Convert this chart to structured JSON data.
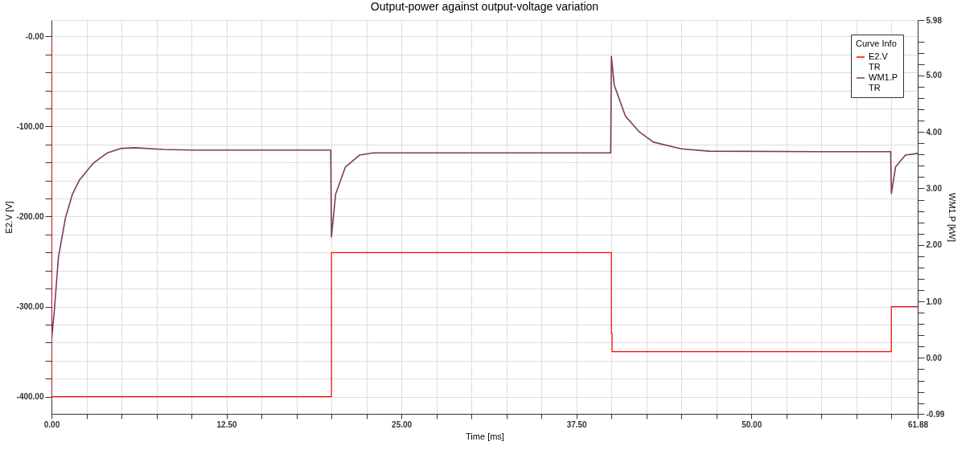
{
  "chart_data": {
    "type": "line",
    "title": "Output-power against output-voltage variation",
    "xlabel": "Time [ms]",
    "ylabel": "E2.V [V]",
    "y2label": "WM1.P [kW]",
    "legend_title": "Curve Info",
    "legend": "top right",
    "grid": true,
    "xlim": [
      0,
      61.88
    ],
    "ylim": [
      -419.1,
      18.2
    ],
    "y2lim": [
      -0.99,
      5.98
    ],
    "xticks": [
      {
        "value": 0,
        "label": "0.00"
      },
      {
        "value": 2.5,
        "label": null
      },
      {
        "value": 5,
        "label": null
      },
      {
        "value": 7.5,
        "label": null
      },
      {
        "value": 10,
        "label": null
      },
      {
        "value": 12.5,
        "label": "12.50"
      },
      {
        "value": 15,
        "label": null
      },
      {
        "value": 17.5,
        "label": null
      },
      {
        "value": 20,
        "label": null
      },
      {
        "value": 22.5,
        "label": null
      },
      {
        "value": 25,
        "label": "25.00"
      },
      {
        "value": 27.5,
        "label": null
      },
      {
        "value": 30,
        "label": null
      },
      {
        "value": 32.5,
        "label": null
      },
      {
        "value": 35,
        "label": null
      },
      {
        "value": 37.5,
        "label": "37.50"
      },
      {
        "value": 40,
        "label": null
      },
      {
        "value": 42.5,
        "label": null
      },
      {
        "value": 45,
        "label": null
      },
      {
        "value": 47.5,
        "label": null
      },
      {
        "value": 50,
        "label": "50.00"
      },
      {
        "value": 52.5,
        "label": null
      },
      {
        "value": 55,
        "label": null
      },
      {
        "value": 57.5,
        "label": null
      },
      {
        "value": 60,
        "label": null
      },
      {
        "value": 61.88,
        "label": "61.88"
      }
    ],
    "yticks": [
      {
        "value": 0,
        "label": "-0.00"
      },
      {
        "value": -20,
        "label": null
      },
      {
        "value": -40,
        "label": null
      },
      {
        "value": -60,
        "label": null
      },
      {
        "value": -80,
        "label": null
      },
      {
        "value": -100,
        "label": "-100.00"
      },
      {
        "value": -120,
        "label": null
      },
      {
        "value": -140,
        "label": null
      },
      {
        "value": -160,
        "label": null
      },
      {
        "value": -180,
        "label": null
      },
      {
        "value": -200,
        "label": "-200.00"
      },
      {
        "value": -220,
        "label": null
      },
      {
        "value": -240,
        "label": null
      },
      {
        "value": -260,
        "label": null
      },
      {
        "value": -280,
        "label": null
      },
      {
        "value": -300,
        "label": "-300.00"
      },
      {
        "value": -320,
        "label": null
      },
      {
        "value": -340,
        "label": null
      },
      {
        "value": -360,
        "label": null
      },
      {
        "value": -380,
        "label": null
      },
      {
        "value": -400,
        "label": "-400.00"
      }
    ],
    "y2ticks": [
      {
        "value": 5.98,
        "label": "5.98"
      },
      {
        "value": 5.6,
        "label": null
      },
      {
        "value": 5.4,
        "label": null
      },
      {
        "value": 5.2,
        "label": null
      },
      {
        "value": 5,
        "label": "5.00"
      },
      {
        "value": 4.8,
        "label": null
      },
      {
        "value": 4.6,
        "label": null
      },
      {
        "value": 4.4,
        "label": null
      },
      {
        "value": 4.2,
        "label": null
      },
      {
        "value": 4,
        "label": "4.00"
      },
      {
        "value": 3.8,
        "label": null
      },
      {
        "value": 3.6,
        "label": null
      },
      {
        "value": 3.4,
        "label": null
      },
      {
        "value": 3.2,
        "label": null
      },
      {
        "value": 3,
        "label": "3.00"
      },
      {
        "value": 2.8,
        "label": null
      },
      {
        "value": 2.6,
        "label": null
      },
      {
        "value": 2.4,
        "label": null
      },
      {
        "value": 2.2,
        "label": null
      },
      {
        "value": 2,
        "label": "2.00"
      },
      {
        "value": 1.8,
        "label": null
      },
      {
        "value": 1.6,
        "label": null
      },
      {
        "value": 1.4,
        "label": null
      },
      {
        "value": 1.2,
        "label": null
      },
      {
        "value": 1,
        "label": "1.00"
      },
      {
        "value": 0.8,
        "label": null
      },
      {
        "value": 0.6,
        "label": null
      },
      {
        "value": 0.4,
        "label": null
      },
      {
        "value": 0.2,
        "label": null
      },
      {
        "value": 0,
        "label": "0.00"
      },
      {
        "value": -0.2,
        "label": null
      },
      {
        "value": -0.4,
        "label": null
      },
      {
        "value": -0.6,
        "label": null
      },
      {
        "value": -0.8,
        "label": null
      },
      {
        "value": -0.99,
        "label": "-0.99"
      }
    ],
    "series": [
      {
        "name": "E2.V\nTR",
        "color": "#ff0000",
        "x": [
          0,
          0,
          20,
          20,
          40,
          40,
          40.05,
          40.05,
          60,
          60,
          61.88
        ],
        "values": [
          0,
          -400,
          -400,
          -240,
          -240,
          -330,
          -330,
          -350,
          -350,
          -300,
          -300
        ]
      },
      {
        "name": "WM1.P\nTR",
        "color": "#7b3b5e",
        "axis": "y2",
        "x": [
          0,
          0.2,
          0.5,
          1,
          1.5,
          2,
          3,
          4,
          5,
          6,
          8,
          10,
          15,
          19.95,
          20,
          20.3,
          21,
          22,
          23,
          30,
          39.95,
          40,
          40.2,
          41,
          42,
          43,
          45,
          47,
          55,
          59.95,
          60,
          60.3,
          61,
          61.88
        ],
        "values": [
          0.31,
          0.82,
          1.79,
          2.48,
          2.9,
          3.15,
          3.45,
          3.63,
          3.71,
          3.72,
          3.69,
          3.68,
          3.68,
          3.68,
          2.14,
          2.9,
          3.38,
          3.59,
          3.63,
          3.63,
          3.63,
          5.34,
          4.83,
          4.28,
          4.0,
          3.82,
          3.7,
          3.66,
          3.65,
          3.65,
          2.91,
          3.38,
          3.59,
          3.62
        ]
      }
    ]
  }
}
